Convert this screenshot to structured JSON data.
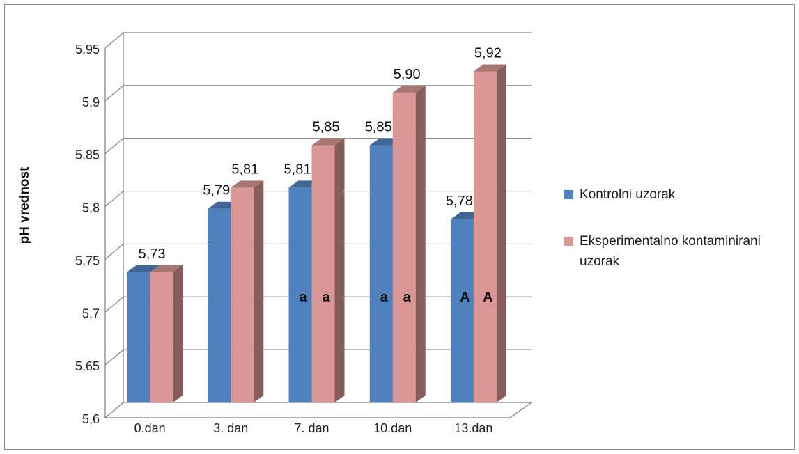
{
  "chart_data": {
    "type": "bar",
    "ylabel": "pH vrednost",
    "ylim": [
      5.6,
      5.95
    ],
    "y_ticks": [
      "5,6",
      "5,65",
      "5,7",
      "5,75",
      "5,8",
      "5,85",
      "5,9",
      "5,95"
    ],
    "categories": [
      "0.dan",
      "3. dan",
      "7. dan",
      "10.dan",
      "13.dan"
    ],
    "series": [
      {
        "name": "Kontrolni uzorak",
        "color": "#4f81bd",
        "values": [
          5.73,
          5.79,
          5.81,
          5.85,
          5.78
        ],
        "labels": [
          "",
          "5,79",
          "5,81",
          "5,85",
          "5,78"
        ],
        "marks": [
          "",
          "",
          "a",
          "a",
          "A"
        ]
      },
      {
        "name": "Eksperimentalno kontaminirani uzorak",
        "color": "#d99694",
        "values": [
          5.73,
          5.81,
          5.85,
          5.9,
          5.92
        ],
        "labels": [
          "5,73",
          "5,81",
          "5,85",
          "5,90",
          "5,92"
        ],
        "marks": [
          "",
          "",
          "a",
          "a",
          "A"
        ]
      }
    ],
    "grid": true,
    "legend_position": "right",
    "style": "3d-clustered-column"
  }
}
